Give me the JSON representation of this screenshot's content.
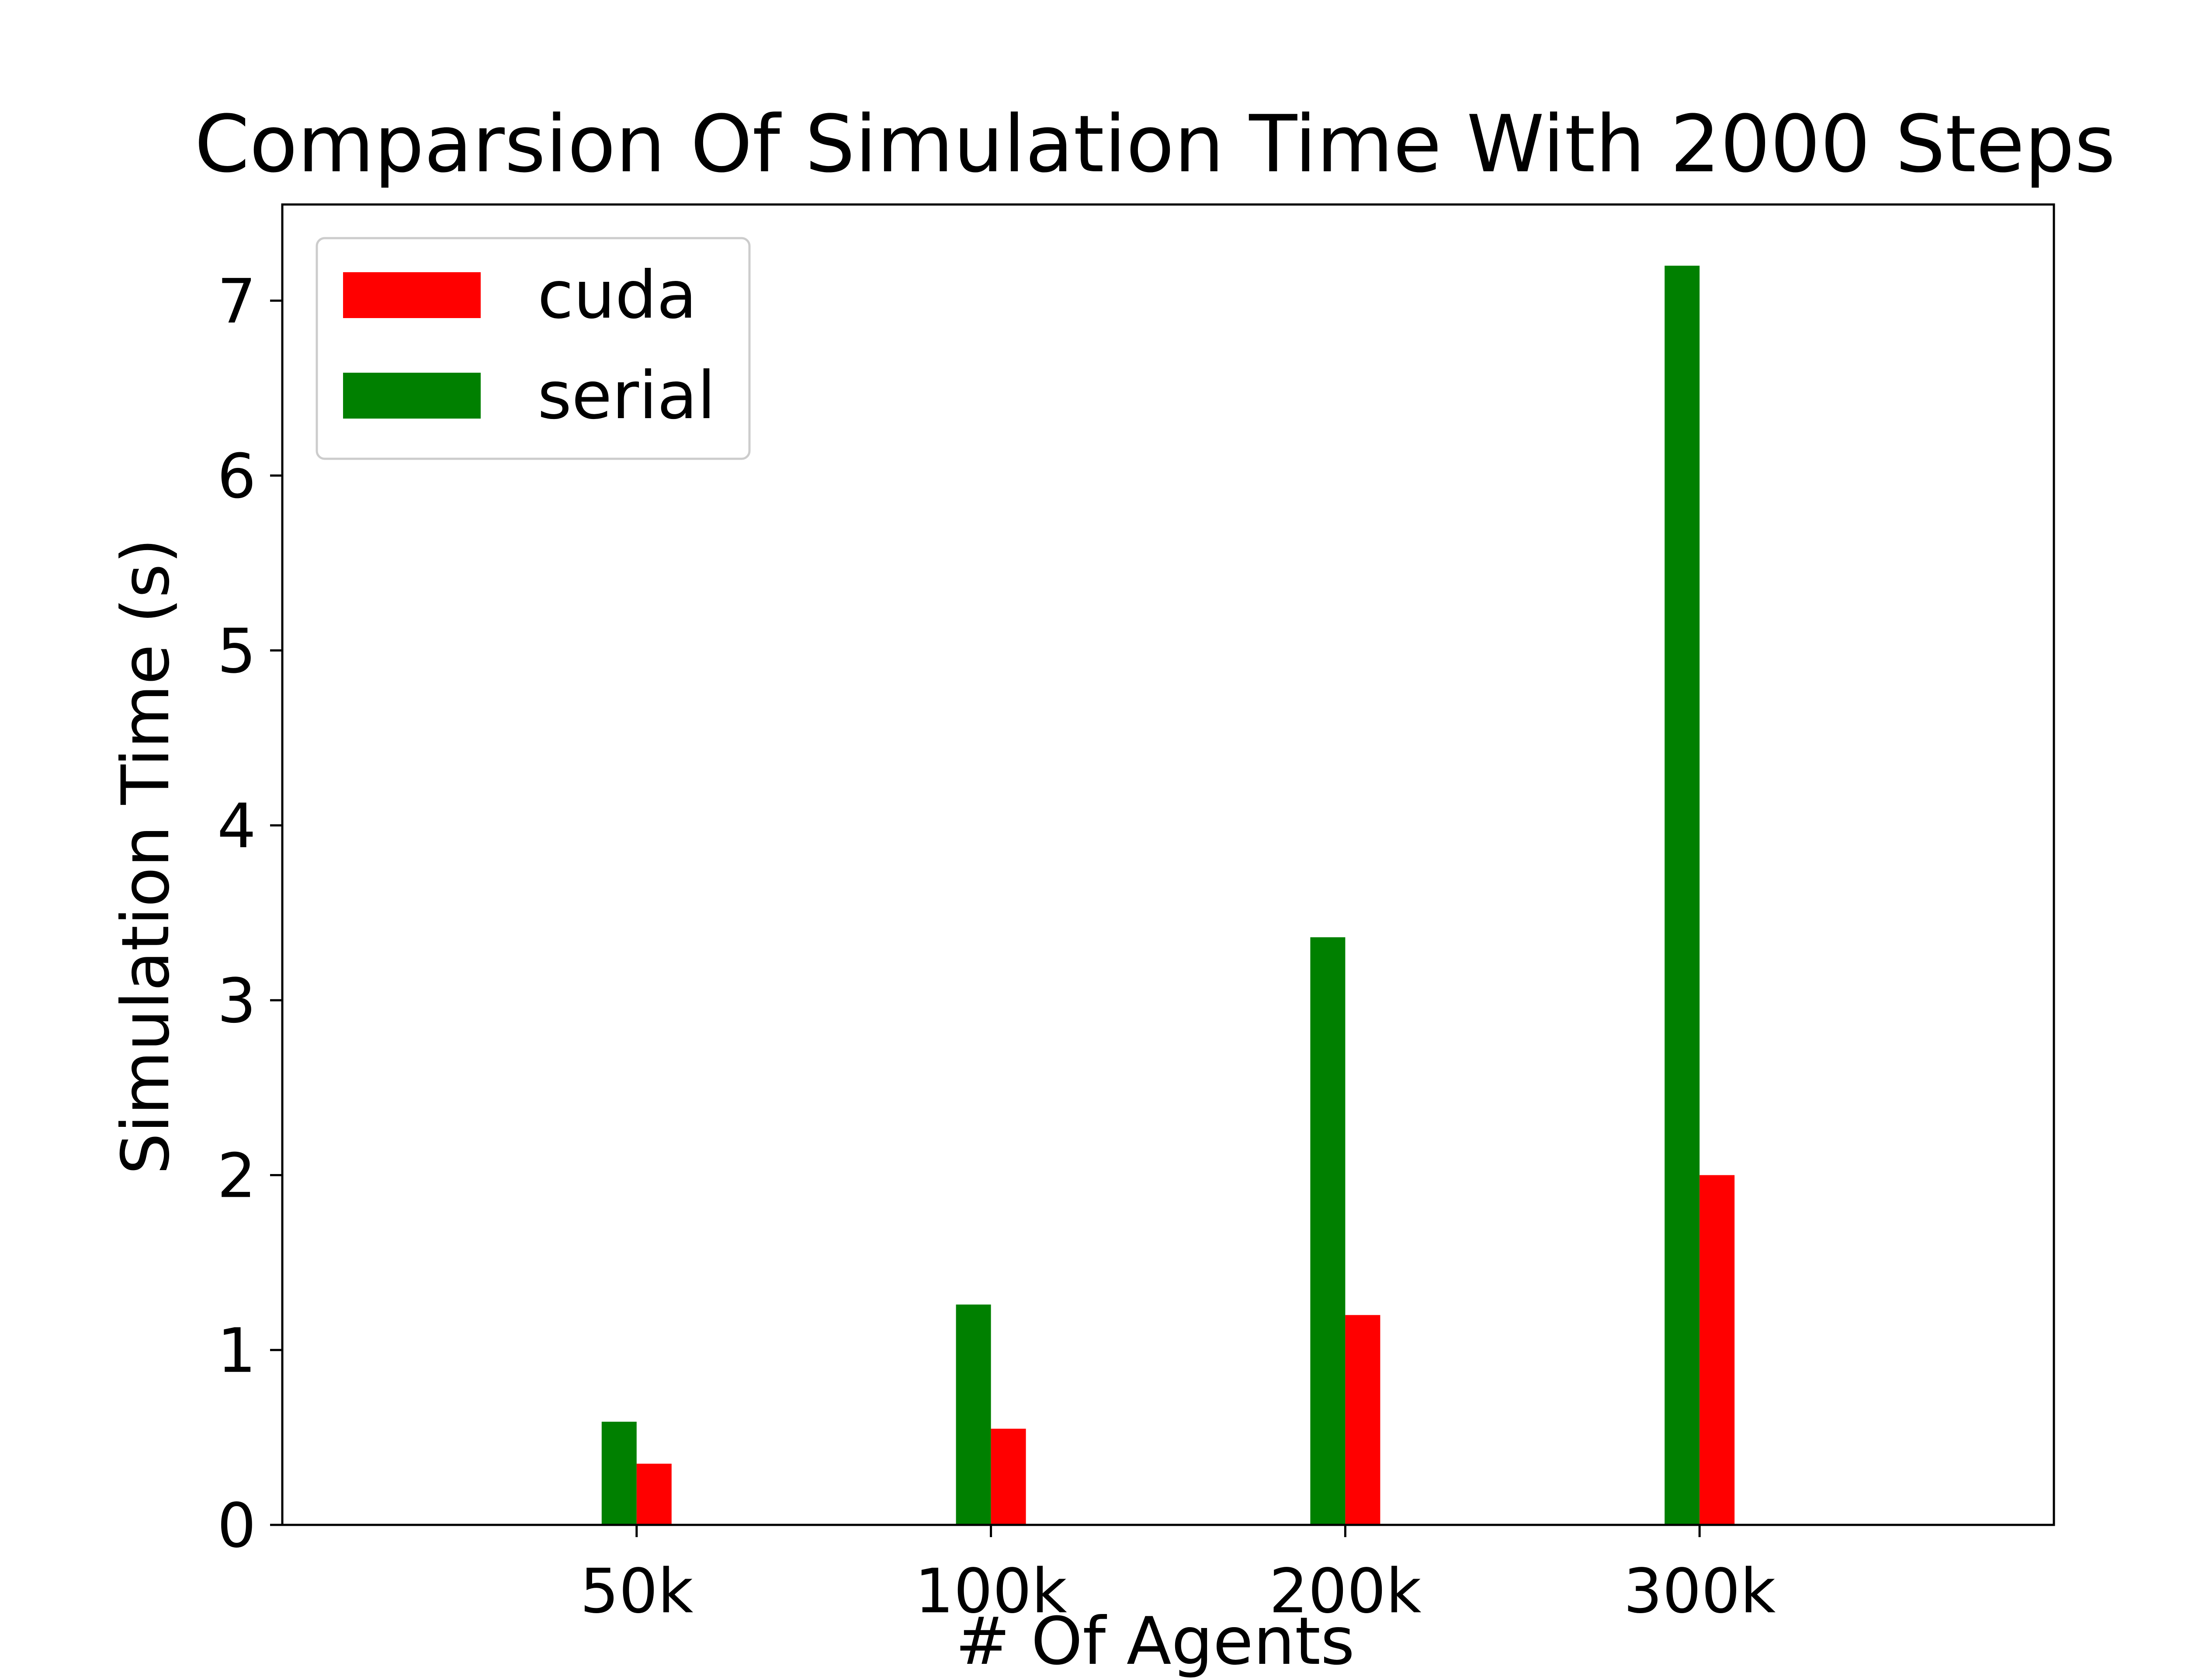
{
  "chart_data": {
    "type": "bar",
    "title": "Comparsion Of Simulation Time With 2000 Steps",
    "xlabel": "# Of Agents",
    "ylabel": "Simulation Time (s)",
    "categories": [
      "50k",
      "100k",
      "200k",
      "300k"
    ],
    "series": [
      {
        "name": "serial",
        "color": "#008000",
        "values": [
          0.59,
          1.26,
          3.36,
          7.2
        ]
      },
      {
        "name": "cuda",
        "color": "#ff0000",
        "values": [
          0.35,
          0.55,
          1.2,
          2.0
        ]
      }
    ],
    "ylim": [
      0,
      7.55
    ],
    "yticks": [
      0,
      1,
      2,
      3,
      4,
      5,
      6,
      7
    ],
    "legend": {
      "position": "top-left",
      "entries": [
        {
          "label": "cuda",
          "color": "#ff0000"
        },
        {
          "label": "serial",
          "color": "#008000"
        }
      ]
    },
    "grid": false
  }
}
